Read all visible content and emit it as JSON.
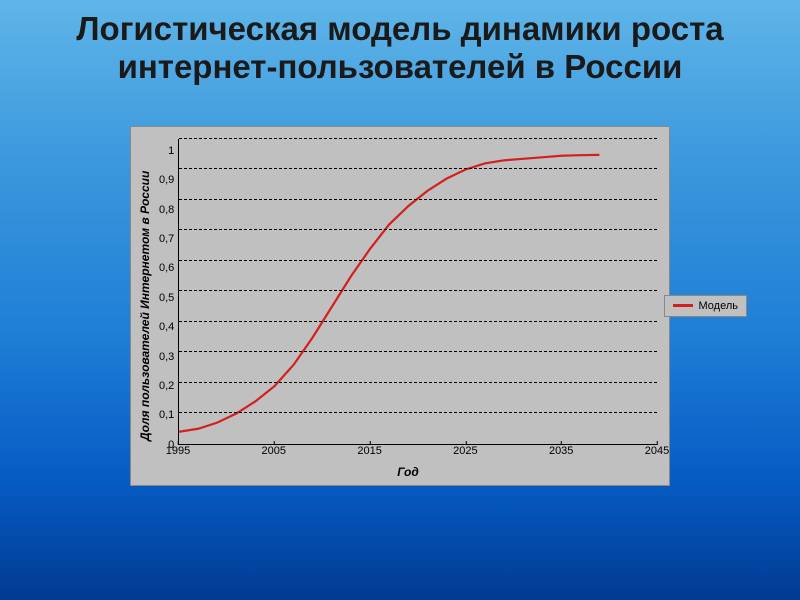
{
  "title": "Логистическая модель динамики роста интернет-пользователей в России",
  "title_fontsize": 33,
  "chart": {
    "type": "line",
    "background_color": "#c0c0c0",
    "grid_color": "#000000",
    "grid_dashed": true,
    "line_color": "#d41f1f",
    "line_width": 2.2,
    "xaxis_title": "Год",
    "yaxis_title": "Доля пользователей Интернетом в России",
    "axis_title_fontsize": 12,
    "tick_fontsize": 11,
    "xlim": [
      1995,
      2045
    ],
    "ylim": [
      0,
      1
    ],
    "xtick_step": 10,
    "xtick_labels": [
      "1995",
      "2005",
      "2015",
      "2025",
      "2035",
      "2045"
    ],
    "ytick_step": 0.1,
    "ytick_labels": [
      "1",
      "0,9",
      "0,8",
      "0,7",
      "0,6",
      "0,5",
      "0,4",
      "0,3",
      "0,2",
      "0,1",
      "0"
    ],
    "series": [
      {
        "name": "Модель",
        "x": [
          1995,
          1997,
          1999,
          2001,
          2003,
          2005,
          2007,
          2009,
          2011,
          2013,
          2015,
          2017,
          2019,
          2021,
          2023,
          2025,
          2027,
          2029,
          2031,
          2033,
          2035,
          2037,
          2039
        ],
        "y": [
          0.04,
          0.05,
          0.07,
          0.1,
          0.14,
          0.19,
          0.26,
          0.35,
          0.45,
          0.55,
          0.64,
          0.72,
          0.78,
          0.83,
          0.87,
          0.9,
          0.92,
          0.93,
          0.935,
          0.94,
          0.945,
          0.947,
          0.948
        ]
      }
    ],
    "legend_position": "right-outside",
    "legend_label": "Модель",
    "legend_fontsize": 11
  }
}
